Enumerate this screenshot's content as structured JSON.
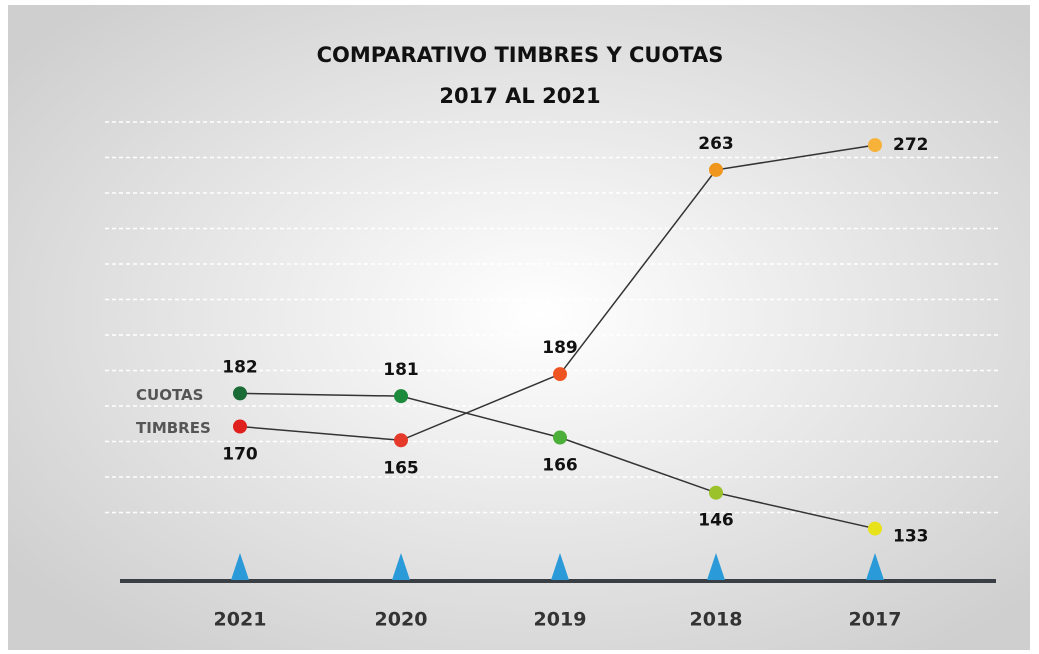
{
  "chart_data": {
    "type": "line",
    "title": "COMPARATIVO TIMBRES Y CUOTAS",
    "subtitle": "2017 AL 2021",
    "categories": [
      "2021",
      "2020",
      "2019",
      "2018",
      "2017"
    ],
    "series": [
      {
        "name": "CUOTAS",
        "color": "#1b6b36",
        "values": [
          182,
          181,
          166,
          146,
          133
        ],
        "point_colors": [
          "#1b6b36",
          "#1e8a3c",
          "#4caf3a",
          "#9bc22a",
          "#e8e21a"
        ]
      },
      {
        "name": "TIMBRES",
        "color": "#e0201c",
        "values": [
          170,
          165,
          189,
          263,
          272
        ],
        "point_colors": [
          "#e0201c",
          "#e53a2a",
          "#ee5522",
          "#f0961e",
          "#f7b23a"
        ]
      }
    ],
    "ylim": [
      114,
      280
    ],
    "grid": true
  }
}
